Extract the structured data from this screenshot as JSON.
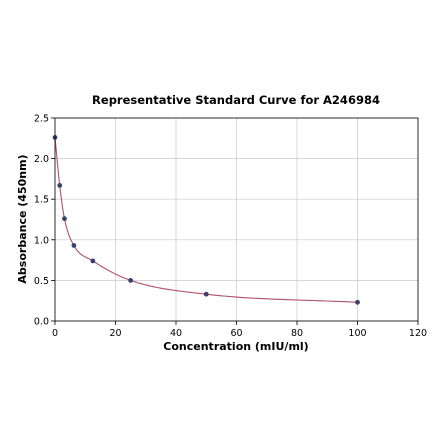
{
  "chart_data": {
    "type": "scatter",
    "title": "Representative Standard Curve for A246984",
    "xlabel": "Concentration (mIU/ml)",
    "ylabel": "Absorbance (450nm)",
    "xlim": [
      0,
      120
    ],
    "ylim": [
      0,
      2.5
    ],
    "x_ticks": [
      "0",
      "20",
      "40",
      "60",
      "80",
      "100",
      "120"
    ],
    "y_ticks": [
      "0.0",
      "0.5",
      "1.0",
      "1.5",
      "2.0",
      "2.5"
    ],
    "grid": true,
    "legend": "none",
    "series": [
      {
        "points": [
          {
            "x": 0,
            "y": 2.26
          },
          {
            "x": 1.56,
            "y": 1.67
          },
          {
            "x": 3.13,
            "y": 1.26
          },
          {
            "x": 6.25,
            "y": 0.93
          },
          {
            "x": 12.5,
            "y": 0.74
          },
          {
            "x": 25,
            "y": 0.5
          },
          {
            "x": 50,
            "y": 0.33
          },
          {
            "x": 100,
            "y": 0.23
          }
        ],
        "marker_color": "#3b3f6e",
        "fit_line_color": "#b0506e"
      }
    ]
  }
}
